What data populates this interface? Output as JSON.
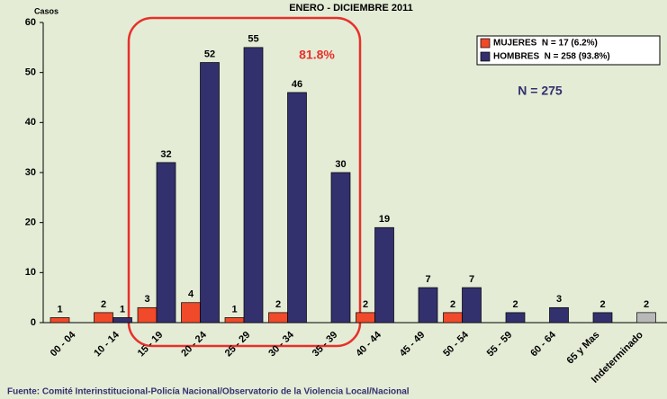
{
  "chart_data": {
    "type": "bar",
    "title": "ENERO - DICIEMBRE 2011",
    "y_label": "Casos",
    "categories": [
      "00 - 04",
      "10 - 14",
      "15 - 19",
      "20 - 24",
      "25 - 29",
      "30 - 34",
      "35 - 39",
      "40 - 44",
      "45 - 49",
      "50 - 54",
      "55 - 59",
      "60 - 64",
      "65 y Mas",
      "Indeterminado"
    ],
    "series": [
      {
        "name": "MUJERES  N = 17 (6.2%)",
        "color": "#f04a2a",
        "values": [
          1,
          2,
          3,
          4,
          1,
          2,
          null,
          2,
          null,
          2,
          null,
          null,
          null,
          null
        ]
      },
      {
        "name": "HOMBRES  N = 258 (93.8%)",
        "color": "#33306e",
        "values": [
          null,
          1,
          32,
          52,
          55,
          46,
          30,
          19,
          7,
          7,
          2,
          3,
          2,
          null
        ]
      },
      {
        "color": "#b8b8b8",
        "values": [
          null,
          null,
          null,
          null,
          null,
          null,
          null,
          null,
          null,
          null,
          null,
          null,
          null,
          2
        ]
      }
    ],
    "ylim": [
      0,
      60
    ],
    "yticks": [
      0,
      10,
      20,
      30,
      40,
      50,
      60
    ],
    "legend": "top-right",
    "annotations": [
      "81.8%",
      "N = 275"
    ],
    "source": "Fuente: Comité Interinstitucional-Policía Nacional/Observatorio de la Violencia Local/Nacional"
  }
}
